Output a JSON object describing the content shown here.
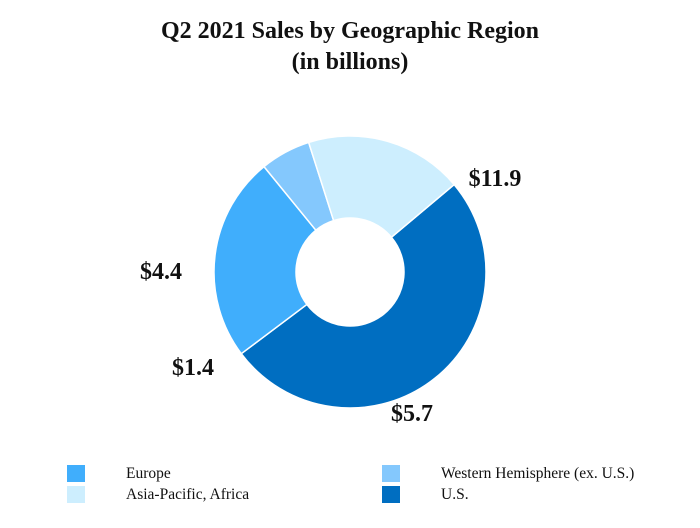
{
  "chart_data": {
    "type": "pie",
    "title": "Q2 2021 Sales by Geographic Region",
    "subtitle": "(in billions)",
    "donut": true,
    "legend_position": "bottom",
    "slices": [
      {
        "name": "U.S.",
        "value": 11.9,
        "label": "$11.9",
        "color": "#006ec1"
      },
      {
        "name": "Europe",
        "value": 5.7,
        "label": "$5.7",
        "color": "#40aefc"
      },
      {
        "name": "Western Hemisphere (ex. U.S.)",
        "value": 1.4,
        "label": "$1.4",
        "color": "#84c8fd"
      },
      {
        "name": "Asia-Pacific, Africa",
        "value": 4.4,
        "label": "$4.4",
        "color": "#cdeefe"
      }
    ],
    "legend": [
      {
        "name": "Europe",
        "color": "#40aefc"
      },
      {
        "name": "Western Hemisphere (ex. U.S.)",
        "color": "#84c8fd"
      },
      {
        "name": "Asia-Pacific, Africa",
        "color": "#cdeefe"
      },
      {
        "name": "U.S.",
        "color": "#006ec1"
      }
    ]
  }
}
